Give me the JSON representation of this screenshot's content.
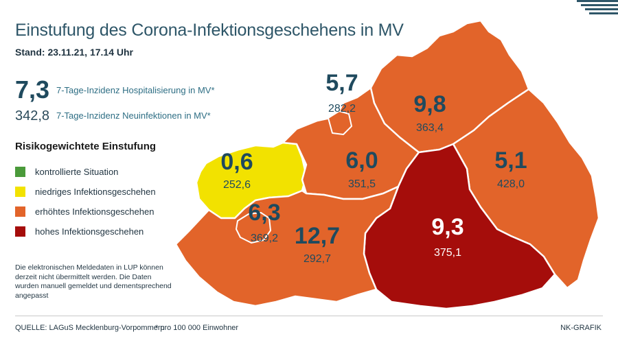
{
  "title": "Einstufung des Corona-Infektionsgeschehens in MV",
  "stand": "Stand: 23.11.21, 17.14 Uhr",
  "kpis": {
    "hosp_value": "7,3",
    "hosp_label": "7-Tage-Inzidenz Hospitalisierung in MV*",
    "neu_value": "342,8",
    "neu_label": "7-Tage-Inzidenz Neuinfektionen in MV*"
  },
  "legend": {
    "title": "Risikogewichtete Einstufung",
    "items": [
      {
        "label": "kontrollierte Situation",
        "color": "#4a9a3a"
      },
      {
        "label": "niedriges Infektionsgeschehen",
        "color": "#f2e200"
      },
      {
        "label": "erhöhtes Infektionsgeschehen",
        "color": "#e2642a"
      },
      {
        "label": "hohes Infektionsgeschehen",
        "color": "#a50d0b"
      }
    ]
  },
  "note": "Die elektronischen Meldedaten in LUP können derzeit nicht übermittelt werden. Die Daten wurden manuell gemeldet und dementsprechend angepasst",
  "footer": {
    "source": "QUELLE: LAGuS Mecklenburg-Vorpommern",
    "footnote": "* pro 100 000 Einwohner",
    "credit": "NK-GRAFIK"
  },
  "colors": {
    "yellow": "#f2e200",
    "orange": "#e2642a",
    "red": "#a50d0b",
    "border": "#ffffff",
    "dark_text": "#1f4a5e",
    "light_text": "#ffffff"
  },
  "regions": [
    {
      "value": "0,6",
      "incidence": "252,6",
      "level": "niedriges Infektionsgeschehen"
    },
    {
      "value": "5,7",
      "incidence": "282,2",
      "level": "erhöhtes Infektionsgeschehen"
    },
    {
      "value": "9,8",
      "incidence": "363,4",
      "level": "erhöhtes Infektionsgeschehen"
    },
    {
      "value": "6,0",
      "incidence": "351,5",
      "level": "erhöhtes Infektionsgeschehen"
    },
    {
      "value": "5,1",
      "incidence": "428,0",
      "level": "erhöhtes Infektionsgeschehen"
    },
    {
      "value": "6,3",
      "incidence": "369,2",
      "level": "erhöhtes Infektionsgeschehen"
    },
    {
      "value": "12,7",
      "incidence": "292,7",
      "level": "erhöhtes Infektionsgeschehen"
    },
    {
      "value": "9,3",
      "incidence": "375,1",
      "level": "hohes Infektionsgeschehen"
    }
  ]
}
